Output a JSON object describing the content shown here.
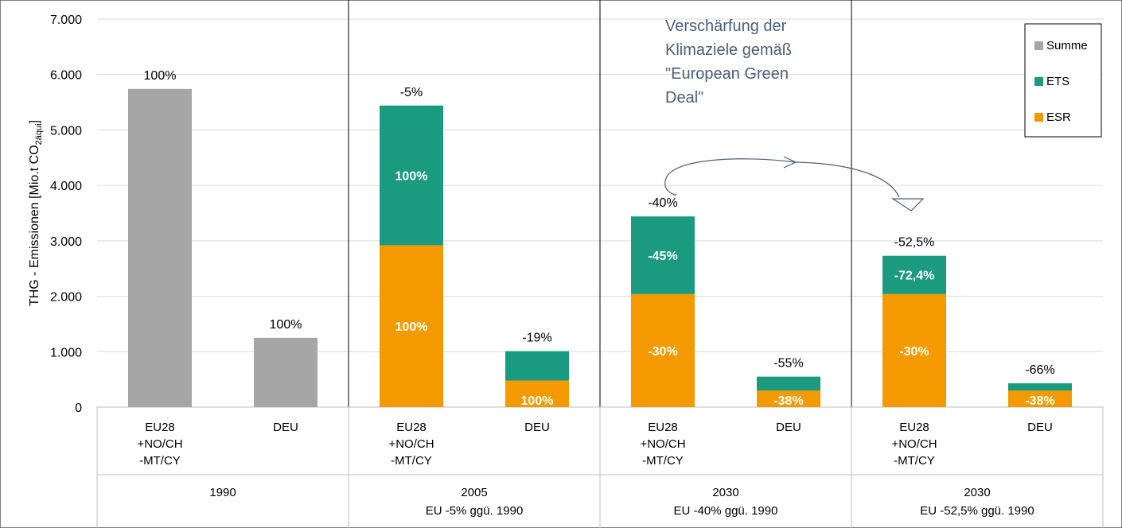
{
  "chart_data": {
    "type": "bar",
    "stacked": true,
    "ylabel": "THG - Emissionen [Mio.t CO",
    "ylabel_sub": "2äqui",
    "ylabel_close": "]",
    "ylim": [
      0,
      7000
    ],
    "yticks": [
      {
        "value": 0,
        "label": "0"
      },
      {
        "value": 1000,
        "label": "1.000"
      },
      {
        "value": 2000,
        "label": "2.000"
      },
      {
        "value": 3000,
        "label": "3.000"
      },
      {
        "value": 4000,
        "label": "4.000"
      },
      {
        "value": 5000,
        "label": "5.000"
      },
      {
        "value": 6000,
        "label": "6.000"
      },
      {
        "value": 7000,
        "label": "7.000"
      }
    ],
    "colors": {
      "Summe": "#a6a6a6",
      "ETS": "#1a9a7e",
      "ESR": "#f29a00"
    },
    "legend": [
      {
        "key": "Summe",
        "label": "Summe"
      },
      {
        "key": "ETS",
        "label": "ETS"
      },
      {
        "key": "ESR",
        "label": "ESR"
      }
    ],
    "groups": [
      {
        "year": "1990",
        "subtitle": ""
      },
      {
        "year": "2005",
        "subtitle": "EU -5% ggü. 1990"
      },
      {
        "year": "2030",
        "subtitle": "EU -40% ggü. 1990"
      },
      {
        "year": "2030",
        "subtitle": "EU -52,5% ggü. 1990"
      }
    ],
    "bars": [
      {
        "group": 0,
        "category": [
          "EU28",
          "+NO/CH",
          "-MT/CY"
        ],
        "segments": [
          {
            "series": "Summe",
            "value": 5740,
            "label": ""
          }
        ],
        "top_label": "100%"
      },
      {
        "group": 0,
        "category": [
          "DEU"
        ],
        "segments": [
          {
            "series": "Summe",
            "value": 1250,
            "label": ""
          }
        ],
        "top_label": "100%"
      },
      {
        "group": 1,
        "category": [
          "EU28",
          "+NO/CH",
          "-MT/CY"
        ],
        "segments": [
          {
            "series": "ESR",
            "value": 2920,
            "label": "100%"
          },
          {
            "series": "ETS",
            "value": 2520,
            "label": "100%"
          }
        ],
        "top_label": "-5%"
      },
      {
        "group": 1,
        "category": [
          "DEU"
        ],
        "segments": [
          {
            "series": "ESR",
            "value": 480,
            "label": "100%"
          },
          {
            "series": "ETS",
            "value": 530,
            "label": ""
          }
        ],
        "top_label": "-19%"
      },
      {
        "group": 2,
        "category": [
          "EU28",
          "+NO/CH",
          "-MT/CY"
        ],
        "segments": [
          {
            "series": "ESR",
            "value": 2040,
            "label": "-30%"
          },
          {
            "series": "ETS",
            "value": 1400,
            "label": "-45%"
          }
        ],
        "top_label": "-40%"
      },
      {
        "group": 2,
        "category": [
          "DEU"
        ],
        "segments": [
          {
            "series": "ESR",
            "value": 300,
            "label": "-38%"
          },
          {
            "series": "ETS",
            "value": 250,
            "label": ""
          }
        ],
        "top_label": "-55%"
      },
      {
        "group": 3,
        "category": [
          "EU28",
          "+NO/CH",
          "-MT/CY"
        ],
        "segments": [
          {
            "series": "ESR",
            "value": 2040,
            "label": "-30%"
          },
          {
            "series": "ETS",
            "value": 690,
            "label": "-72,4%"
          }
        ],
        "top_label": "-52,5%"
      },
      {
        "group": 3,
        "category": [
          "DEU"
        ],
        "segments": [
          {
            "series": "ESR",
            "value": 300,
            "label": "-38%"
          },
          {
            "series": "ETS",
            "value": 130,
            "label": ""
          }
        ],
        "top_label": "-66%"
      }
    ],
    "annotation": {
      "lines": [
        "Verschärfung der",
        "Klimaziele gemäß",
        "\"European Green",
        "Deal\""
      ],
      "color": "#4a6079"
    }
  }
}
